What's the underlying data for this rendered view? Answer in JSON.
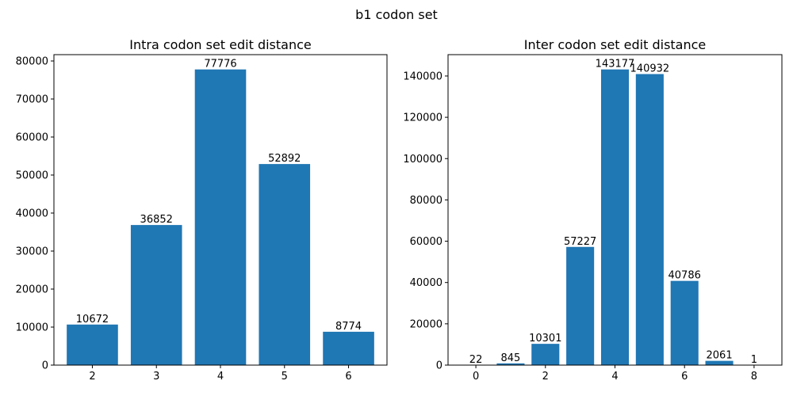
{
  "figure": {
    "title": "b1 codon set"
  },
  "chart_data": [
    {
      "type": "bar",
      "title": "Intra codon set edit distance",
      "xlabel": "",
      "ylabel": "",
      "categories": [
        2,
        3,
        4,
        5,
        6
      ],
      "values": [
        10672,
        36852,
        77776,
        52892,
        8774
      ],
      "data_labels": [
        "10672",
        "36852",
        "77776",
        "52892",
        "8774"
      ],
      "xlim": [
        1.4,
        6.6
      ],
      "ylim": [
        0,
        81665
      ],
      "xticks": [
        2,
        3,
        4,
        5,
        6
      ],
      "yticks": [
        0,
        10000,
        20000,
        30000,
        40000,
        50000,
        60000,
        70000,
        80000
      ],
      "bar_color": "#1f77b4",
      "grid": false,
      "legend": "none"
    },
    {
      "type": "bar",
      "title": "Inter codon set edit distance",
      "xlabel": "",
      "ylabel": "",
      "categories": [
        0,
        1,
        2,
        3,
        4,
        5,
        6,
        7,
        8
      ],
      "values": [
        22,
        845,
        10301,
        57227,
        143177,
        140932,
        40786,
        2061,
        1
      ],
      "data_labels": [
        "22",
        "845",
        "10301",
        "57227",
        "143177",
        "140932",
        "40786",
        "2061",
        "1"
      ],
      "xlim": [
        -0.8,
        8.8
      ],
      "ylim": [
        0,
        150336
      ],
      "xticks": [
        0,
        2,
        4,
        6,
        8
      ],
      "yticks": [
        0,
        20000,
        40000,
        60000,
        80000,
        100000,
        120000,
        140000
      ],
      "bar_color": "#1f77b4",
      "grid": false,
      "legend": "none"
    }
  ]
}
